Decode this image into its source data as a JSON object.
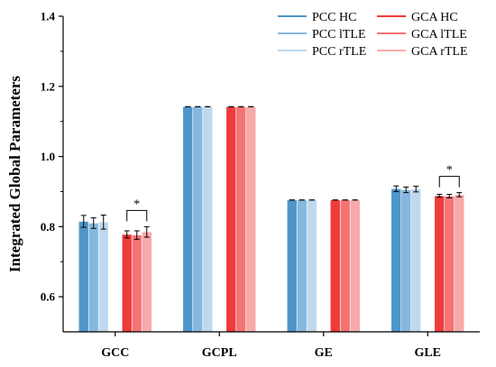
{
  "chart_data": {
    "type": "bar",
    "ylabel": "Integrated Global Parameters",
    "xlabel": "",
    "ylim": [
      0.5,
      1.4
    ],
    "yticks": [
      "0.6",
      "0.8",
      "1.0",
      "1.2",
      "1.4"
    ],
    "categories": [
      "GCC",
      "GCPL",
      "GE",
      "GLE"
    ],
    "series": [
      {
        "name": "PCC HC",
        "color": "#4e96c8",
        "values": [
          0.815,
          1.142,
          0.876,
          0.908
        ],
        "errors": [
          0.017,
          0.0,
          0.0,
          0.008
        ]
      },
      {
        "name": "PCC lTLE",
        "color": "#86b7de",
        "values": [
          0.81,
          1.142,
          0.876,
          0.905
        ],
        "errors": [
          0.015,
          0.0,
          0.0,
          0.008
        ]
      },
      {
        "name": "PCC rTLE",
        "color": "#bed9ef",
        "values": [
          0.813,
          1.142,
          0.876,
          0.907
        ],
        "errors": [
          0.02,
          0.0,
          0.0,
          0.008
        ]
      },
      {
        "name": "GCA HC",
        "color": "#ef3b3b",
        "values": [
          0.778,
          1.142,
          0.876,
          0.888
        ],
        "errors": [
          0.01,
          0.0,
          0.0,
          0.004
        ]
      },
      {
        "name": "GCA lTLE",
        "color": "#f47474",
        "values": [
          0.776,
          1.142,
          0.876,
          0.887
        ],
        "errors": [
          0.012,
          0.0,
          0.0,
          0.005
        ]
      },
      {
        "name": "GCA rTLE",
        "color": "#f8a9a9",
        "values": [
          0.785,
          1.142,
          0.876,
          0.891
        ],
        "errors": [
          0.015,
          0.0,
          0.0,
          0.006
        ]
      }
    ],
    "legend": "top-right",
    "annotations": [
      {
        "category": "GCC",
        "text": "*"
      },
      {
        "category": "GLE",
        "text": "*"
      }
    ],
    "grid": false
  }
}
